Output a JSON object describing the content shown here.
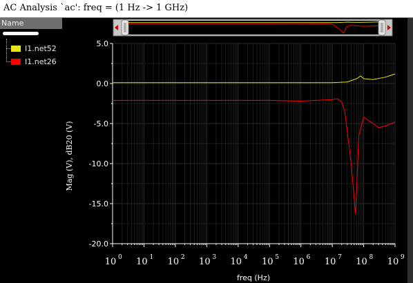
{
  "window": {
    "title": "AC Analysis `ac': freq = (1 Hz -> 1 GHz)"
  },
  "sidebar": {
    "header": "Name",
    "items": [
      {
        "label": "I1.net52",
        "color": "#e6e619"
      },
      {
        "label": "I1.net26",
        "color": "#ff0000"
      }
    ]
  },
  "chart_data": {
    "type": "line",
    "xlabel": "freq (Hz)",
    "ylabel": "Mag (V), dB20 (V)",
    "xscale": "log",
    "xlim": [
      1,
      1000000000
    ],
    "ylim": [
      -20,
      5
    ],
    "x_ticks": [
      1,
      10,
      100,
      1000,
      10000,
      100000,
      1000000,
      10000000,
      100000000,
      1000000000
    ],
    "x_tick_bases": [
      "10",
      "10",
      "10",
      "10",
      "10",
      "10",
      "10",
      "10",
      "10",
      "10"
    ],
    "x_tick_exps": [
      "0",
      "1",
      "2",
      "3",
      "4",
      "5",
      "6",
      "7",
      "8",
      "9"
    ],
    "y_ticks": [
      5,
      0,
      -5,
      -10,
      -15,
      -20
    ],
    "y_tick_labels": [
      "5.0",
      "0.0",
      "-5.0",
      "-10.0",
      "-15.0",
      "-20.0"
    ],
    "grid": true,
    "background": "#000000",
    "grid_color": "#2a2a2a",
    "axis_color": "#ffffff",
    "series": [
      {
        "name": "I1.net52",
        "color": "#e6e619",
        "x": [
          1,
          1000000,
          10000000,
          30000000,
          60000000,
          80000000,
          100000000,
          200000000,
          500000000,
          1000000000
        ],
        "y": [
          0.1,
          0.1,
          0.1,
          0.2,
          0.6,
          0.95,
          0.6,
          0.5,
          0.8,
          1.2
        ]
      },
      {
        "name": "I1.net26",
        "color": "#ff0000",
        "x": [
          1,
          100000,
          1000000,
          3000000,
          10000000,
          15000000,
          20000000,
          25000000,
          30000000,
          40000000,
          50000000,
          55000000,
          60000000,
          70000000,
          100000000,
          200000000,
          300000000,
          500000000,
          1000000000
        ],
        "y": [
          -2.1,
          -2.1,
          -2.2,
          -2.1,
          -2.0,
          -1.9,
          -2.3,
          -3.5,
          -6.0,
          -10.0,
          -14.5,
          -16.3,
          -13.0,
          -6.5,
          -4.2,
          -5.0,
          -5.5,
          -5.3,
          -4.8
        ]
      }
    ]
  }
}
